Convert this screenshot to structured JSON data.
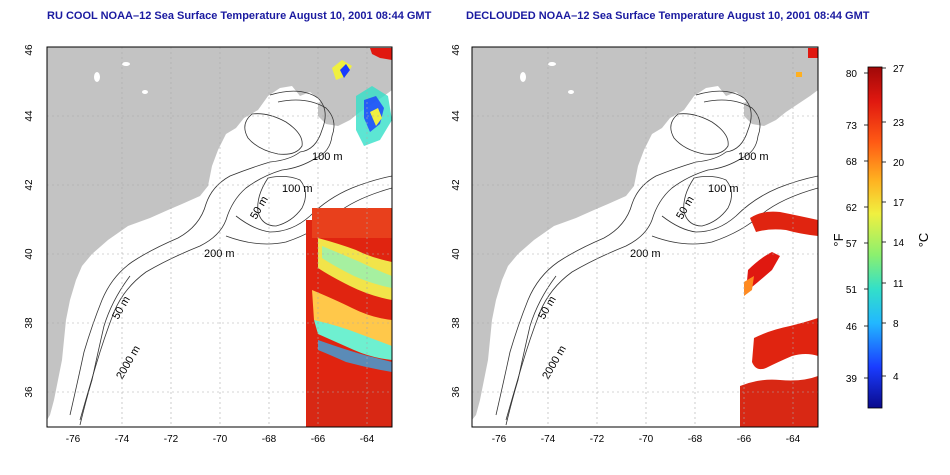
{
  "panels": [
    {
      "title": "RU COOL NOAA–12 Sea Surface Temperature August 10, 2001 08:44 GMT",
      "contour_labels": [
        "100 m",
        "100 m",
        "50 m",
        "200 m",
        "50 m",
        "2000 m"
      ]
    },
    {
      "title": "DECLOUDED NOAA–12 Sea Surface Temperature August 10, 2001 08:44 GMT",
      "contour_labels": [
        "100 m",
        "100 m",
        "50 m",
        "200 m",
        "50 m",
        "2000 m"
      ]
    }
  ],
  "axes": {
    "lon_ticks": [
      "-76",
      "-74",
      "-72",
      "-70",
      "-68",
      "-66",
      "-64"
    ],
    "lat_ticks": [
      "36",
      "38",
      "40",
      "42",
      "44",
      "46"
    ]
  },
  "colorbar": {
    "left_unit": "°F",
    "right_unit": "°C",
    "f_ticks": [
      "80",
      "73",
      "68",
      "62",
      "57",
      "51",
      "46",
      "39"
    ],
    "c_ticks": [
      "27",
      "23",
      "20",
      "17",
      "14",
      "11",
      "8",
      "4"
    ],
    "colors": [
      "#0a0a8c",
      "#1a3cff",
      "#22b8ff",
      "#33e0c8",
      "#8cf06e",
      "#f0f040",
      "#ffb020",
      "#ff5a14",
      "#e01810",
      "#a00808"
    ]
  },
  "colors": {
    "land": "#c3c3c3",
    "ocean": "#ffffff",
    "title": "#1a1aa0",
    "grid": "#aaaaaa"
  }
}
